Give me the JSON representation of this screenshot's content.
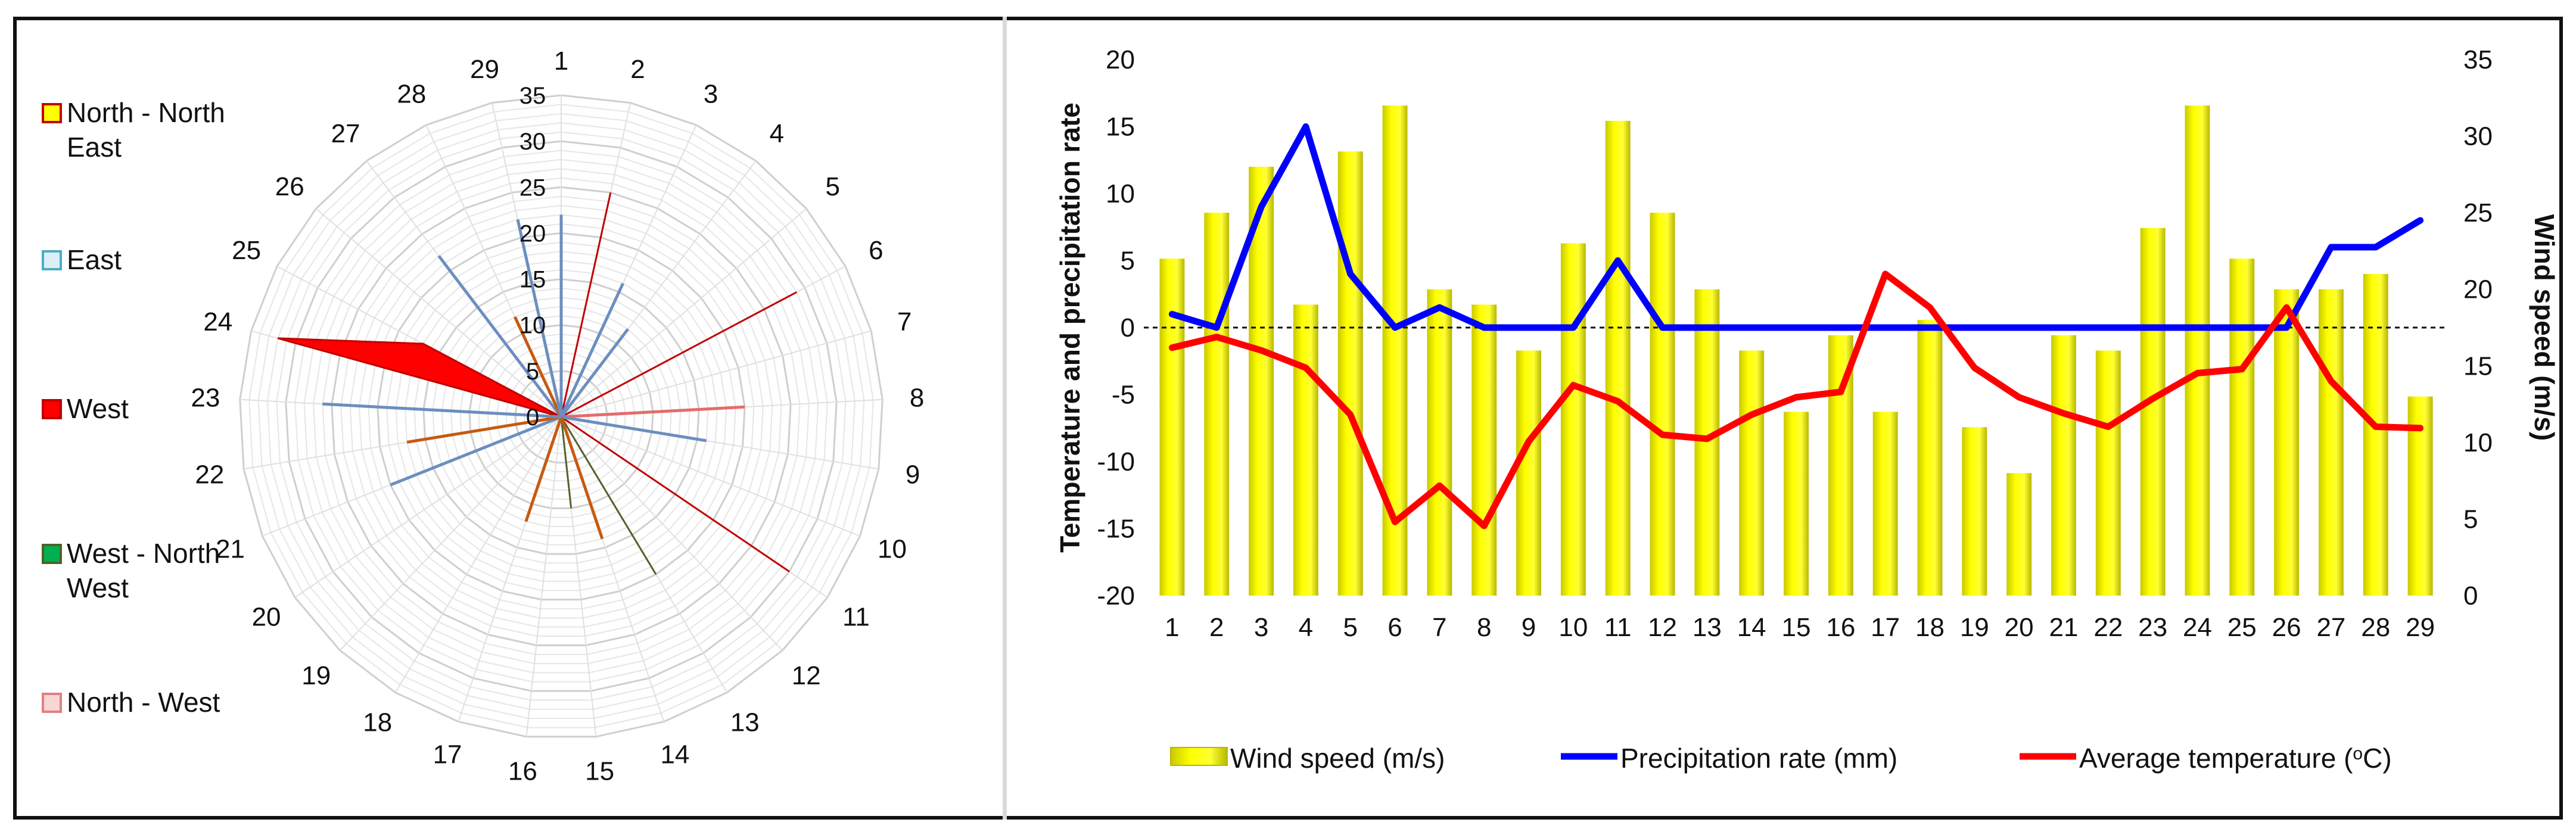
{
  "chart_data": [
    {
      "type": "radar",
      "title": "",
      "axis": {
        "min": 0,
        "max": 35,
        "step": 5,
        "ticks": [
          "0",
          "5",
          "10",
          "15",
          "20",
          "25",
          "30",
          "35"
        ]
      },
      "categories": [
        "1",
        "2",
        "3",
        "4",
        "5",
        "6",
        "7",
        "8",
        "9",
        "10",
        "11",
        "12",
        "13",
        "14",
        "15",
        "16",
        "17",
        "18",
        "19",
        "20",
        "21",
        "22",
        "23",
        "24",
        "25",
        "26",
        "27",
        "28",
        "29"
      ],
      "legend": [
        {
          "label": "North - North East",
          "color": "#FFFF00",
          "border": "#C00000"
        },
        {
          "label": "East",
          "color": "#DDEEF8",
          "border": "#4BACC6"
        },
        {
          "label": "West",
          "color": "#FF0000",
          "border": "#C00000"
        },
        {
          "label": "West - North West",
          "color": "#00B050",
          "border": "#4F6228"
        },
        {
          "label": "North - West",
          "color": "#F9D6D4",
          "border": "#E08080"
        }
      ],
      "filled_series": [
        {
          "name": "North - North East",
          "color": "#FFFF00",
          "stroke": "#C00000",
          "values": [
            0,
            0,
            0,
            0,
            0,
            29,
            0,
            0,
            0,
            0,
            0,
            0,
            0,
            0,
            0,
            0,
            0,
            0,
            0,
            0,
            0,
            0,
            0,
            0,
            0,
            0,
            0,
            0,
            0
          ]
        },
        {
          "name": "West",
          "color": "#FF0000",
          "stroke": "#C00000",
          "values": [
            0,
            25,
            0,
            0,
            0,
            0,
            0,
            0,
            0,
            0,
            30,
            0,
            0,
            0,
            0,
            0,
            0,
            0,
            0,
            0,
            0,
            0,
            0,
            32,
            17,
            0,
            0,
            0,
            0
          ]
        },
        {
          "name": "West - North West",
          "color": "#00B050",
          "stroke": "#4F6228",
          "values": [
            0,
            0,
            0,
            0,
            0,
            0,
            0,
            0,
            0,
            0,
            0,
            0,
            20,
            0,
            10,
            0,
            12,
            0,
            0,
            0,
            0,
            0,
            0,
            0,
            0,
            0,
            0,
            0,
            0
          ]
        }
      ],
      "radial_lines": [
        {
          "category": "1",
          "value": 22,
          "color": "#6C8EBF"
        },
        {
          "category": "3",
          "value": 16,
          "color": "#6C8EBF"
        },
        {
          "category": "4",
          "value": 12,
          "color": "#6C8EBF"
        },
        {
          "category": "8",
          "value": 20,
          "color": "#E46C6C"
        },
        {
          "category": "9",
          "value": 16,
          "color": "#6C8EBF"
        },
        {
          "category": "14",
          "value": 14,
          "color": "#C55A11"
        },
        {
          "category": "17",
          "value": 12,
          "color": "#C55A11"
        },
        {
          "category": "21",
          "value": 20,
          "color": "#6C8EBF"
        },
        {
          "category": "22",
          "value": 17,
          "color": "#C55A11"
        },
        {
          "category": "23",
          "value": 26,
          "color": "#6C8EBF"
        },
        {
          "category": "27",
          "value": 22,
          "color": "#6C8EBF"
        },
        {
          "category": "28",
          "value": 12,
          "color": "#C55A11"
        },
        {
          "category": "29",
          "value": 22,
          "color": "#6C8EBF"
        }
      ]
    },
    {
      "type": "bar+line",
      "x": [
        "1",
        "2",
        "3",
        "4",
        "5",
        "6",
        "7",
        "8",
        "9",
        "10",
        "11",
        "12",
        "13",
        "14",
        "15",
        "16",
        "17",
        "18",
        "19",
        "20",
        "21",
        "22",
        "23",
        "24",
        "25",
        "26",
        "27",
        "28",
        "29"
      ],
      "ylabel": "Temperature and precipitation rate",
      "y2label": "Wind speed (m/s)",
      "ylim": [
        -20,
        20
      ],
      "yticks": [
        "-20",
        "-15",
        "-10",
        "-5",
        "0",
        "5",
        "10",
        "15",
        "20"
      ],
      "y2lim": [
        0,
        35
      ],
      "y2ticks": [
        "0",
        "5",
        "10",
        "15",
        "20",
        "25",
        "30",
        "35"
      ],
      "series": [
        {
          "name": "Wind speed (m/s)",
          "type": "bar",
          "axis": "y2",
          "color": "#FFFF00",
          "values": [
            22,
            25,
            28,
            19,
            29,
            32,
            20,
            19,
            16,
            23,
            31,
            25,
            20,
            16,
            12,
            17,
            12,
            18,
            11,
            8,
            17,
            16,
            24,
            32,
            22,
            20,
            20,
            21,
            13
          ]
        },
        {
          "name": "Precipitation rate (mm)",
          "type": "line",
          "axis": "y",
          "color": "#0000FF",
          "values": [
            1,
            0,
            9,
            15,
            4,
            0,
            1.5,
            0,
            0,
            0,
            5,
            0,
            0,
            0,
            0,
            0,
            0,
            0,
            0,
            0,
            0,
            0,
            0,
            0,
            0,
            0,
            6,
            6,
            8
          ]
        },
        {
          "name": "Average temperature (oC)",
          "type": "line",
          "axis": "y",
          "color": "#FF0000",
          "values": [
            -1.5,
            -0.7,
            -1.7,
            -3,
            -6.5,
            -14.5,
            -11.8,
            -14.8,
            -8.5,
            -4.3,
            -5.5,
            -8,
            -8.3,
            -6.5,
            -5.2,
            -4.8,
            4,
            1.5,
            -3,
            -5.2,
            -6.4,
            -7.4,
            -5.3,
            -3.4,
            -3.1,
            1.5,
            -4,
            -7.4,
            -7.5
          ]
        }
      ],
      "legend": [
        {
          "label": "Wind speed (m/s)",
          "kind": "bar",
          "color": "#FFFF00"
        },
        {
          "label": "Precipitation rate (mm)",
          "kind": "line",
          "color": "#0000FF"
        },
        {
          "label": "Average temperature (",
          "sup": "o",
          "tail": "C)",
          "kind": "line",
          "color": "#FF0000"
        }
      ]
    }
  ]
}
